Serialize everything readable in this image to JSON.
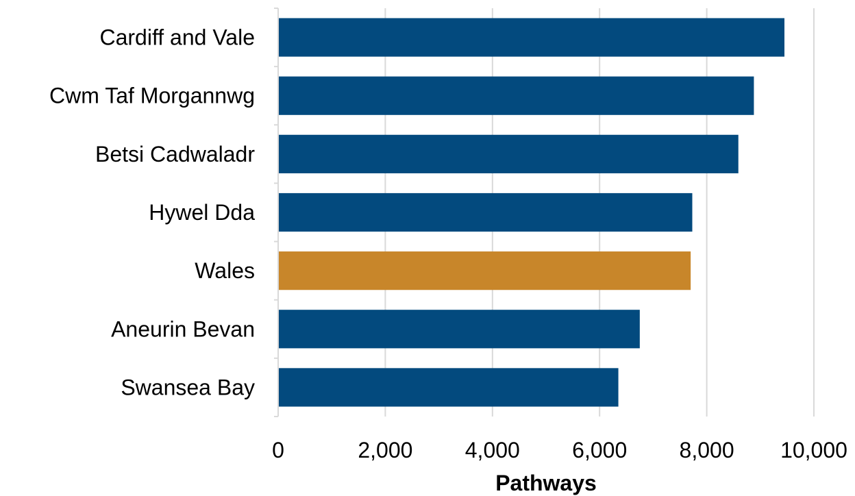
{
  "chart_data": {
    "type": "bar",
    "orientation": "horizontal",
    "categories": [
      "Cardiff and Vale",
      "Cwm Taf Morgannwg",
      "Betsi Cadwaladr",
      "Hywel Dda",
      "Wales",
      "Aneurin Bevan",
      "Swansea Bay"
    ],
    "values": [
      9450,
      8880,
      8590,
      7730,
      7700,
      6750,
      6350
    ],
    "bar_colors": [
      "#034a7e",
      "#034a7e",
      "#034a7e",
      "#034a7e",
      "#c8862a",
      "#034a7e",
      "#034a7e"
    ],
    "xlabel": "Pathways",
    "xlim": [
      0,
      10000
    ],
    "xticks": [
      0,
      2000,
      4000,
      6000,
      8000,
      10000
    ],
    "xtick_labels": [
      "0",
      "2,000",
      "4,000",
      "6,000",
      "8,000",
      "10,000"
    ],
    "grid": "vertical",
    "legend": "none"
  }
}
